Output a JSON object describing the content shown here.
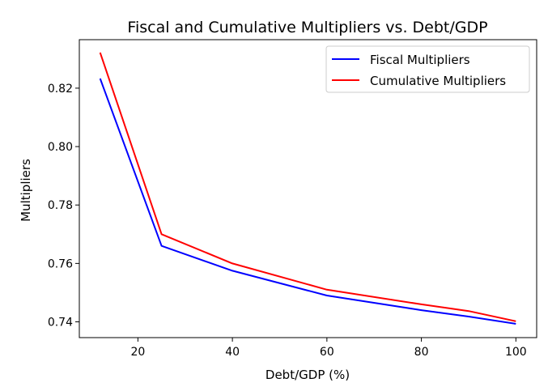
{
  "chart_data": {
    "type": "line",
    "title": "Fiscal and Cumulative Multipliers vs. Debt/GDP",
    "xlabel": "Debt/GDP (%)",
    "ylabel": "Multipliers",
    "xlim": [
      7.6,
      104.4
    ],
    "ylim": [
      0.7346,
      0.8366
    ],
    "xticks": [
      "20",
      "40",
      "60",
      "80",
      "100"
    ],
    "yticks": [
      "0.74",
      "0.76",
      "0.78",
      "0.80",
      "0.82"
    ],
    "grid": false,
    "legend_position": "top-right",
    "x": [
      12,
      25,
      40,
      60,
      80,
      90,
      100
    ],
    "series": [
      {
        "name": "Fiscal Multipliers",
        "color": "#0000ff",
        "values": [
          0.8233,
          0.766,
          0.7575,
          0.749,
          0.744,
          0.7418,
          0.7393
        ]
      },
      {
        "name": "Cumulative Multipliers",
        "color": "#ff0000",
        "values": [
          0.8322,
          0.77,
          0.76,
          0.751,
          0.746,
          0.7437,
          0.7402
        ]
      }
    ]
  }
}
